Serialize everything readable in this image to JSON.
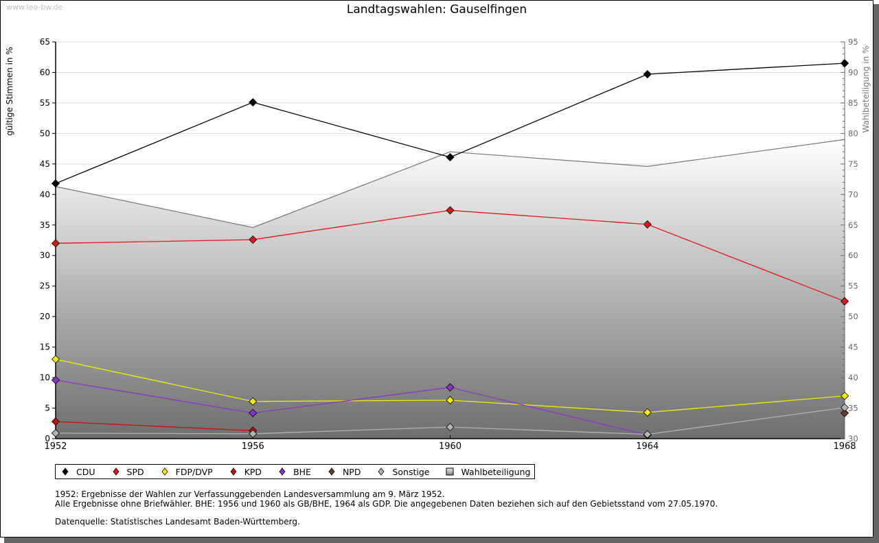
{
  "watermark": "www.leo-bw.de",
  "chart_data": {
    "type": "line",
    "title": "Landtagswahlen: Gauselfingen",
    "xlabel": "",
    "ylabel": "gültige Stimmen in %",
    "ylabel_right": "Wahlbeteiligung in %",
    "ylim": [
      0,
      65
    ],
    "ylim_right": [
      30,
      95
    ],
    "yticks": [
      0,
      5,
      10,
      15,
      20,
      25,
      30,
      35,
      40,
      45,
      50,
      55,
      60,
      65
    ],
    "yticks_right": [
      30,
      35,
      40,
      45,
      50,
      55,
      60,
      65,
      70,
      75,
      80,
      85,
      90,
      95
    ],
    "x": [
      1952,
      1956,
      1960,
      1964,
      1968
    ],
    "xtick_labels": [
      "1952",
      "1956",
      "1960",
      "1964",
      "1968"
    ],
    "grid": true,
    "legend_position": "bottom-left",
    "series": [
      {
        "name": "CDU",
        "color": "#000000",
        "values": [
          41.8,
          55.1,
          46.1,
          59.7,
          61.5
        ]
      },
      {
        "name": "SPD",
        "color": "#e0161a",
        "values": [
          32.0,
          32.6,
          37.4,
          35.1,
          22.5
        ]
      },
      {
        "name": "FDP/DVP",
        "color": "#f5f000",
        "values": [
          13.0,
          6.1,
          6.3,
          4.3,
          7.0
        ]
      },
      {
        "name": "KPD",
        "color": "#c40f0f",
        "values": [
          2.8,
          1.3,
          null,
          null,
          null
        ]
      },
      {
        "name": "BHE",
        "color": "#8b35c4",
        "values": [
          9.6,
          4.2,
          8.4,
          0.6,
          null
        ]
      },
      {
        "name": "NPD",
        "color": "#5b4030",
        "values": [
          null,
          null,
          null,
          null,
          4.2
        ]
      },
      {
        "name": "Sonstige",
        "color": "#b4b4b4",
        "values": [
          0.9,
          0.8,
          1.9,
          0.7,
          5.1
        ]
      }
    ],
    "turnout": {
      "name": "Wahlbeteiligung",
      "axis": "right",
      "type": "area",
      "color": "#777777",
      "values": [
        71.3,
        64.6,
        77.0,
        74.6,
        79.0
      ]
    }
  },
  "notes": [
    "1952: Ergebnisse der Wahlen zur Verfassunggebenden Landesversammlung am 9. März 1952.",
    "Alle Ergebnisse ohne Briefwähler. BHE: 1956 und 1960 als GB/BHE, 1964 als GDP. Die angegebenen Daten beziehen sich auf den Gebietsstand vom 27.05.1970.",
    "Datenquelle: Statistisches Landesamt Baden-Württemberg."
  ]
}
